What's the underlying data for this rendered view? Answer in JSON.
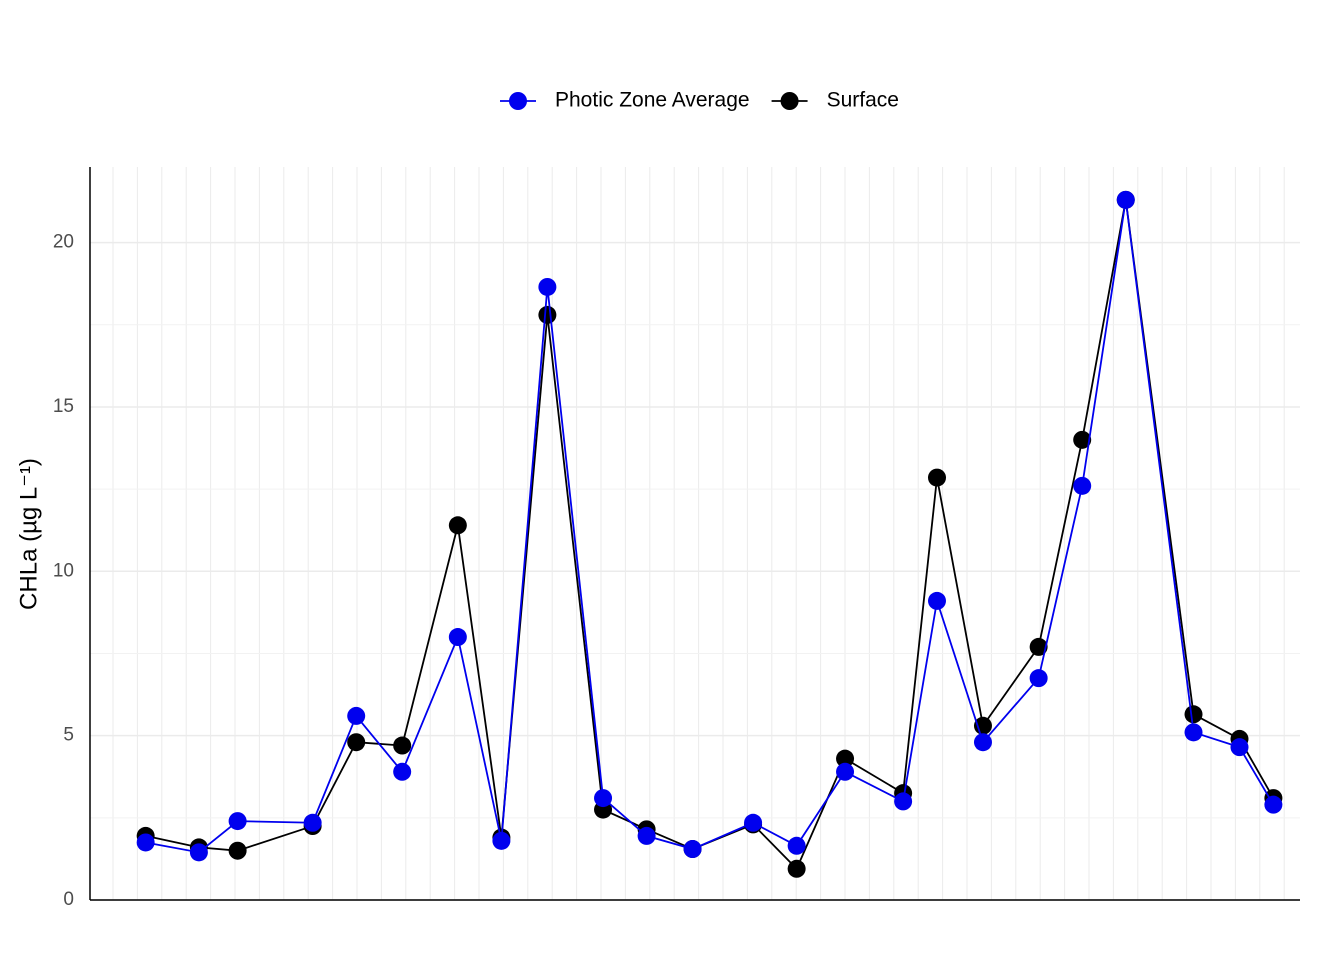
{
  "chart_data": {
    "type": "line",
    "y_label": "CHLa (µg L⁻¹)",
    "x": [
      2.3,
      4.5,
      6.1,
      9.2,
      11.0,
      12.9,
      15.2,
      17.0,
      18.9,
      21.2,
      23.0,
      24.9,
      27.4,
      29.2,
      31.2,
      33.6,
      35.0,
      36.9,
      39.2,
      41.0,
      42.8,
      45.6,
      47.5,
      48.9
    ],
    "xlim": [
      0,
      50
    ],
    "series": [
      {
        "name": "Photic Zone Average",
        "color": "#0000ee",
        "values": [
          1.75,
          1.45,
          2.4,
          2.35,
          5.6,
          3.9,
          8.0,
          1.8,
          18.65,
          3.1,
          1.95,
          1.55,
          2.35,
          1.65,
          3.9,
          3.0,
          9.1,
          4.8,
          6.75,
          12.6,
          21.3,
          5.1,
          4.65,
          2.9
        ]
      },
      {
        "name": "Surface",
        "color": "#000000",
        "values": [
          1.95,
          1.6,
          1.5,
          2.25,
          4.8,
          4.7,
          11.4,
          1.9,
          17.8,
          2.75,
          2.15,
          1.55,
          2.3,
          0.95,
          4.3,
          3.25,
          12.85,
          5.3,
          7.7,
          14.0,
          21.3,
          5.65,
          4.9,
          3.1
        ]
      }
    ],
    "ylim": [
      0,
      22.3
    ],
    "yticks": [
      0,
      5,
      10,
      15,
      20
    ],
    "grid": true,
    "legend": "top"
  }
}
